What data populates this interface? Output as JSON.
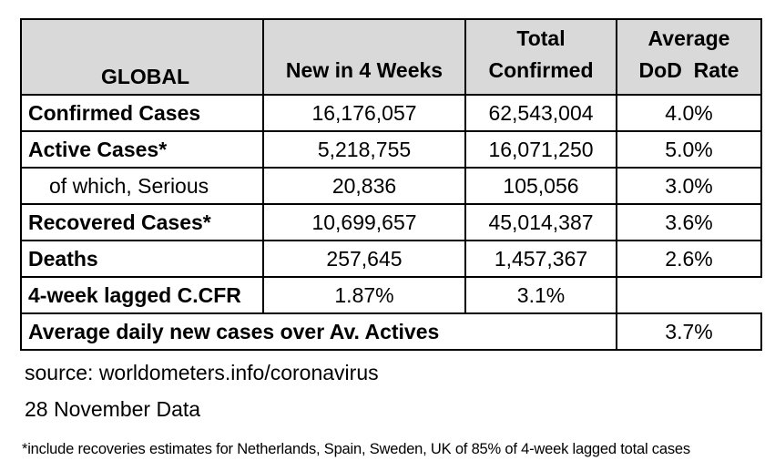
{
  "chart_data": {
    "type": "table",
    "title": "GLOBAL",
    "columns": [
      "New in 4 Weeks",
      "Total Confirmed",
      "Average DoD Rate"
    ],
    "rows": [
      {
        "label": "Confirmed Cases",
        "new_in_4_weeks": "16,176,057",
        "total_confirmed": "62,543,004",
        "average_dod_rate": "4.0%"
      },
      {
        "label": "Active Cases*",
        "new_in_4_weeks": "5,218,755",
        "total_confirmed": "16,071,250",
        "average_dod_rate": "5.0%"
      },
      {
        "label": "of which, Serious",
        "new_in_4_weeks": "20,836",
        "total_confirmed": "105,056",
        "average_dod_rate": "3.0%"
      },
      {
        "label": "Recovered Cases*",
        "new_in_4_weeks": "10,699,657",
        "total_confirmed": "45,014,387",
        "average_dod_rate": "3.6%"
      },
      {
        "label": "Deaths",
        "new_in_4_weeks": "257,645",
        "total_confirmed": "1,457,367",
        "average_dod_rate": "2.6%"
      },
      {
        "label": "4-week lagged C.CFR",
        "new_in_4_weeks": "1.87%",
        "total_confirmed": "3.1%",
        "average_dod_rate": ""
      },
      {
        "label": "Average daily new cases over Av. Actives",
        "average_dod_rate": "3.7%"
      }
    ]
  },
  "header_display": {
    "title": "GLOBAL",
    "col2_line1": "New in 4 Weeks",
    "col3_line1": "Total",
    "col3_line2": "Confirmed",
    "col4_line1": "Average",
    "col4_line2": "DoD  Rate"
  },
  "footer": {
    "source": "source: worldometers.info/coronavirus",
    "date": "28 November Data",
    "footnote": "*include recoveries estimates for Netherlands, Spain, Sweden, UK of 85% of 4-week lagged total cases"
  },
  "colors": {
    "header_background": "#d9d9d9",
    "border": "#000000",
    "text": "#000000",
    "page_background": "#ffffff"
  }
}
